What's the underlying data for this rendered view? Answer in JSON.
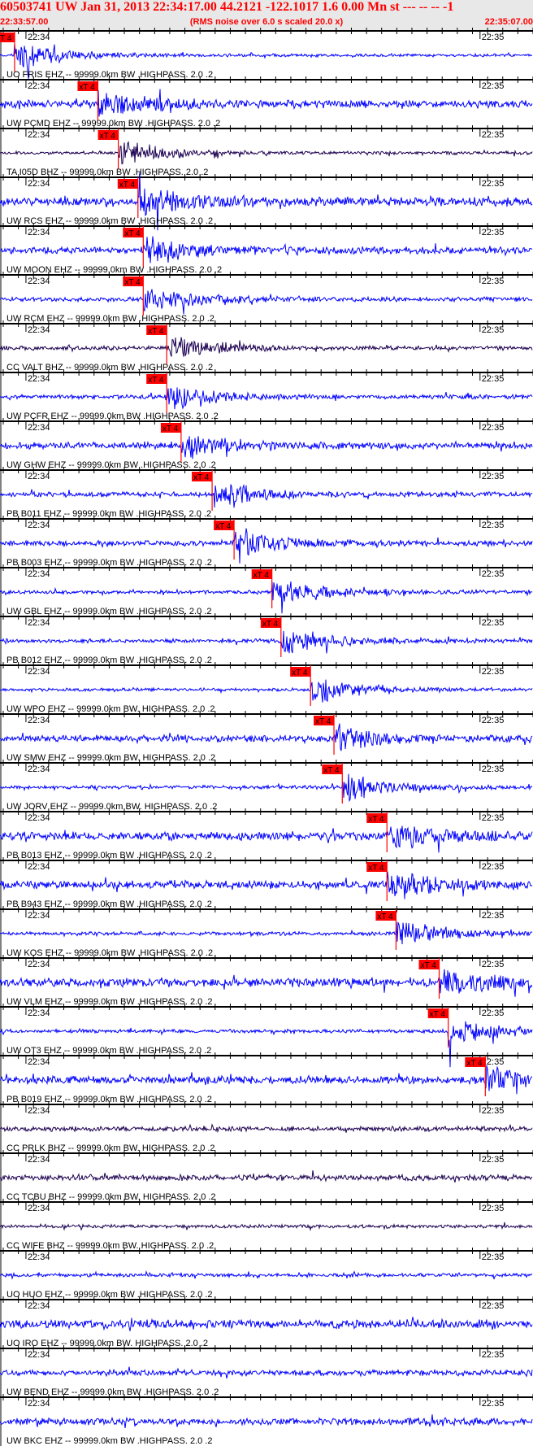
{
  "header": {
    "title": "60503741 UW Jan 31, 2013 22:34:17.00   44.2121 -122.1017  1.6 0.00 Mn st --- -- --   -1",
    "start_time": "22:33:57.00",
    "note": "(RMS noise over 6.0 s scaled 20.0 x)",
    "end_time": "22:35:07.00"
  },
  "chart_data": {
    "type": "line",
    "title": "60503741 UW Jan 31, 2013 22:34:17.00",
    "x_range": [
      "22:33:57.00",
      "22:35:07.00"
    ],
    "tick_labels": [
      "22:34",
      "22:35"
    ],
    "pick_label": "xT 4",
    "colors": {
      "header_text": "#ff0000",
      "pick": "#ff0000",
      "trace_blue": "#0000ff",
      "trace_dark": "#1c0050",
      "header_bg": "#e8e8e8"
    },
    "traces": [
      {
        "label": "UO FRIS EHZ -- 99999.0km BW .HIGHPASS. 2.0 .2",
        "pick_time": "22:33:58.5",
        "color": "#0000ff"
      },
      {
        "label": "UW PCMD EHZ -- 99999.0km BW .HIGHPASS. 2.0 .2",
        "pick_time": "22:34:09.5",
        "color": "#0000ff"
      },
      {
        "label": "TA I05D BHZ -- 99999.0km BW .HIGHPASS. 2.0 .2",
        "pick_time": "22:34:12.2",
        "color": "#1c0050"
      },
      {
        "label": "UW RCS EHZ -- 99999.0km BW .HIGHPASS. 2.0 .2",
        "pick_time": "22:34:14.8",
        "color": "#0000ff"
      },
      {
        "label": "UW MOON EHZ -- 99999.0km BW .HIGHPASS. 2.0 .2",
        "pick_time": "22:34:15.5",
        "color": "#0000ff"
      },
      {
        "label": "UW RCM EHZ -- 99999.0km BW .HIGHPASS. 2.0 .2",
        "pick_time": "22:34:15.5",
        "color": "#0000ff"
      },
      {
        "label": "CC VALT BHZ -- 99999.0km BW .HIGHPASS. 2.0 .2",
        "pick_time": "22:34:18.6",
        "color": "#1c0050"
      },
      {
        "label": "UW PCFR EHZ -- 99999.0km BW .HIGHPASS. 2.0 .2",
        "pick_time": "22:34:18.6",
        "color": "#0000ff"
      },
      {
        "label": "UW GHW EHZ -- 99999.0km BW .HIGHPASS. 2.0 .2",
        "pick_time": "22:34:20.5",
        "color": "#0000ff"
      },
      {
        "label": "PB B011 EHZ -- 99999.0km BW .HIGHPASS. 2.0 .2",
        "pick_time": "22:34:24.6",
        "color": "#0000ff"
      },
      {
        "label": "PB B003 EHZ -- 99999.0km BW .HIGHPASS. 2.0 .2",
        "pick_time": "22:34:27.5",
        "color": "#0000ff"
      },
      {
        "label": "UW GBL EHZ -- 99999.0km BW .HIGHPASS. 2.0 .2",
        "pick_time": "22:34:32.5",
        "color": "#0000ff"
      },
      {
        "label": "PB B012 EHZ -- 99999.0km BW .HIGHPASS. 2.0 .2",
        "pick_time": "22:34:33.7",
        "color": "#0000ff"
      },
      {
        "label": "UW WPO EHZ -- 99999.0km BW. HIGHPASS. 2.0 .2",
        "pick_time": "22:34:37.6",
        "color": "#0000ff"
      },
      {
        "label": "UW SMW EHZ -- 99999.0km BW. HIGHPASS. 2.0 .2",
        "pick_time": "22:34:40.7",
        "color": "#0000ff"
      },
      {
        "label": "UW JORV EHZ -- 99999.0km BW. HIGHPASS. 2.0 .2",
        "pick_time": "22:34:41.8",
        "color": "#0000ff"
      },
      {
        "label": "PB B013 EHZ -- 99999.0km BW .HIGHPASS. 2.0 .2",
        "pick_time": "22:34:47.7",
        "color": "#0000ff"
      },
      {
        "label": "PB B943 EHZ -- 99999.0km BW .HIGHPASS. 2.0 .2",
        "pick_time": "22:34:47.7",
        "color": "#0000ff"
      },
      {
        "label": "UW KOS EHZ -- 99999.0km BW .HIGHPASS. 2.0 .2",
        "pick_time": "22:34:48.9",
        "color": "#0000ff"
      },
      {
        "label": "UW VLM EHZ -- 99999.0km BW .HIGHPASS. 2.0 .2",
        "pick_time": "22:34:54.6",
        "color": "#0000ff"
      },
      {
        "label": "UW OT3 EHZ -- 99999.0km BW .HIGHPASS. 2.0 .2",
        "pick_time": "22:34:55.8",
        "color": "#0000ff"
      },
      {
        "label": "PB B019 EHZ -- 99999.0km BW .HIGHPASS. 2.0 .2",
        "pick_time": "22:35:00.7",
        "color": "#0000ff"
      },
      {
        "label": "CC PRLK BHZ -- 99999.0km BW. HIGHPASS. 2.0 .2",
        "pick_time": null,
        "color": "#1c0050"
      },
      {
        "label": "CC TCBU BHZ -- 99999.0km BW. HIGHPASS. 2.0 .2",
        "pick_time": null,
        "color": "#1c0050"
      },
      {
        "label": "CC WIFE BHZ -- 99999.0km BW. HIGHPASS. 2.0 .2",
        "pick_time": null,
        "color": "#1c0050"
      },
      {
        "label": "UO HUO EHZ -- 99999.0km BW .HIGHPASS. 2.0 .2",
        "pick_time": null,
        "color": "#0000ff"
      },
      {
        "label": "UO IRO EHZ -- 99999.0km BW. HIGHPASS. 2.0 .2",
        "pick_time": null,
        "color": "#0000ff"
      },
      {
        "label": "UW BEND EHZ -- 99999.0km BW .HIGHPASS. 2.0 .2",
        "pick_time": null,
        "color": "#0000ff"
      },
      {
        "label": "UW BKC EHZ -- 99999.0km BW .HIGHPASS. 2.0 .2",
        "pick_time": null,
        "color": "#0000ff"
      }
    ]
  }
}
